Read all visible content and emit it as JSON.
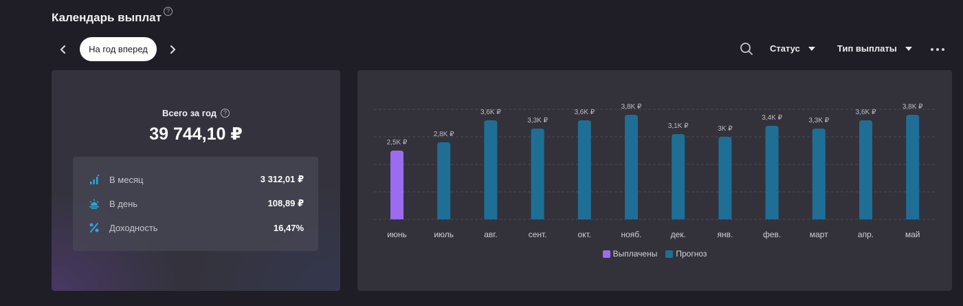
{
  "header": {
    "title": "Календарь выплат",
    "period_label": "На год вперед",
    "filters": {
      "status": "Статус",
      "payout_type": "Тип выплаты"
    }
  },
  "summary": {
    "total_label": "Всего за год",
    "total_value": "39 744,10 ₽",
    "rows": [
      {
        "label": "В месяц",
        "value": "3 312,01 ₽",
        "icon": "bar-chart-icon"
      },
      {
        "label": "В день",
        "value": "108,89 ₽",
        "icon": "sunrise-icon"
      },
      {
        "label": "Доходность",
        "value": "16,47%",
        "icon": "percent-icon"
      }
    ]
  },
  "colors": {
    "paid": "#9b6cf0",
    "forecast": "#1f6e96",
    "accent_icon": "#2aa6e0"
  },
  "chart_data": {
    "type": "bar",
    "categories": [
      "июнь",
      "июль",
      "авг.",
      "сент.",
      "окт.",
      "нояб.",
      "дек.",
      "янв.",
      "фев.",
      "март",
      "апр.",
      "май"
    ],
    "values": [
      2.5,
      2.8,
      3.6,
      3.3,
      3.6,
      3.8,
      3.1,
      3.0,
      3.4,
      3.3,
      3.6,
      3.8
    ],
    "value_labels": [
      "2,5K ₽",
      "2,8K ₽",
      "3,6K ₽",
      "3,3K ₽",
      "3,6K ₽",
      "3,8K ₽",
      "3,1K ₽",
      "3K ₽",
      "3,4K ₽",
      "3,3K ₽",
      "3,6K ₽",
      "3,8K ₽"
    ],
    "status": [
      "paid",
      "forecast",
      "forecast",
      "forecast",
      "forecast",
      "forecast",
      "forecast",
      "forecast",
      "forecast",
      "forecast",
      "forecast",
      "forecast"
    ],
    "legend": [
      {
        "name": "Выплачены",
        "key": "paid"
      },
      {
        "name": "Прогноз",
        "key": "forecast"
      }
    ],
    "ylim": [
      0,
      4
    ],
    "grid": true,
    "legend_position": "bottom"
  }
}
